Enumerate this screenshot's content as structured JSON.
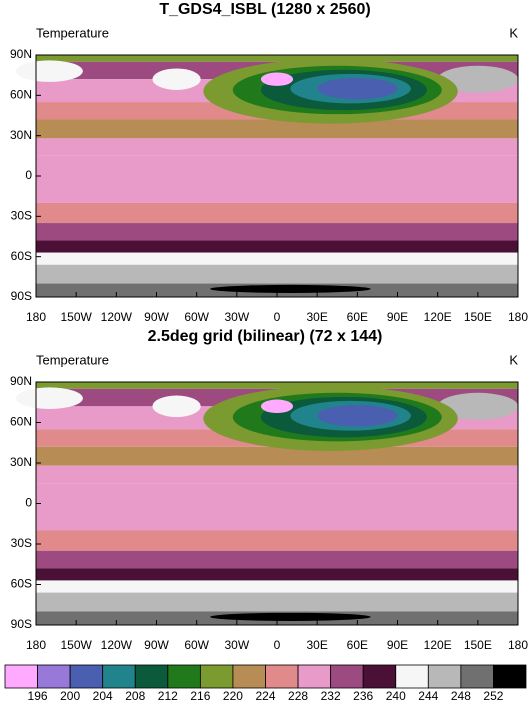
{
  "panels": [
    {
      "title": "T_GDS4_ISBL (1280 x 2560)",
      "left_label": "Temperature",
      "right_label": "K",
      "xlim": [
        -180,
        180
      ],
      "ylim": [
        -90,
        90
      ],
      "xticks": [
        {
          "value": -180,
          "label": "180"
        },
        {
          "value": -150,
          "label": "150W"
        },
        {
          "value": -120,
          "label": "120W"
        },
        {
          "value": -90,
          "label": "90W"
        },
        {
          "value": -60,
          "label": "60W"
        },
        {
          "value": -30,
          "label": "30W"
        },
        0,
        {
          "value": 30,
          "label": "30E"
        },
        {
          "value": 60,
          "label": "60E"
        },
        {
          "value": 90,
          "label": "90E"
        },
        {
          "value": 120,
          "label": "120E"
        },
        {
          "value": 150,
          "label": "150E"
        },
        180
      ],
      "yticks": [
        {
          "value": -90,
          "label": "90S"
        },
        {
          "value": -60,
          "label": "60S"
        },
        {
          "value": -30,
          "label": "30S"
        },
        0,
        {
          "value": 30,
          "label": "30N"
        },
        {
          "value": 60,
          "label": "60N"
        },
        {
          "value": 90,
          "label": "90N"
        }
      ]
    },
    {
      "title": "2.5deg grid (bilinear) (72 x 144)",
      "left_label": "Temperature",
      "right_label": "K",
      "xlim": [
        -180,
        180
      ],
      "ylim": [
        -90,
        90
      ],
      "xticks": [
        {
          "value": -180,
          "label": "180"
        },
        {
          "value": -150,
          "label": "150W"
        },
        {
          "value": -120,
          "label": "120W"
        },
        {
          "value": -90,
          "label": "90W"
        },
        {
          "value": -60,
          "label": "60W"
        },
        {
          "value": -30,
          "label": "30W"
        },
        0,
        {
          "value": 30,
          "label": "30E"
        },
        {
          "value": 60,
          "label": "60E"
        },
        {
          "value": 90,
          "label": "90E"
        },
        {
          "value": 120,
          "label": "120E"
        },
        {
          "value": 150,
          "label": "150E"
        },
        180
      ],
      "yticks": [
        {
          "value": -90,
          "label": "90S"
        },
        {
          "value": -60,
          "label": "60S"
        },
        {
          "value": -30,
          "label": "30S"
        },
        0,
        {
          "value": 30,
          "label": "30N"
        },
        {
          "value": 60,
          "label": "60N"
        },
        {
          "value": 90,
          "label": "90N"
        }
      ]
    }
  ],
  "colorbar": {
    "levels": [
      196,
      200,
      204,
      208,
      212,
      216,
      220,
      224,
      228,
      232,
      236,
      240,
      244,
      248,
      252
    ],
    "colors": [
      "#ffaaff",
      "#9878d8",
      "#4a5fb0",
      "#21848c",
      "#0b5a3c",
      "#207a1c",
      "#7b9a2f",
      "#b88c55",
      "#e08a8c",
      "#e89ac8",
      "#9c4a80",
      "#4a1035",
      "#f6f6f6",
      "#b8b8b8",
      "#707070",
      "#000000"
    ]
  }
}
